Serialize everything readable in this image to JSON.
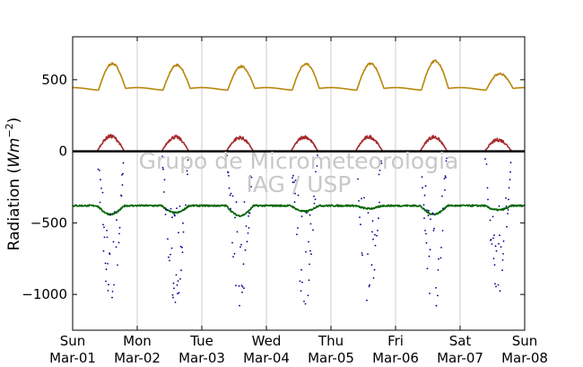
{
  "chart_data": {
    "type": "scatter",
    "ylabel_text": "Radiation (",
    "ylabel_math": "Wm",
    "ylabel_exp": "−2",
    "ylabel_close": ")",
    "ylim": [
      -1250,
      800
    ],
    "xlim": [
      0,
      7
    ],
    "grid": "vertical",
    "yticks": [
      500,
      0,
      -500,
      -1000
    ],
    "ytick_labels": [
      "500",
      "0",
      "−500",
      "−1000"
    ],
    "xtick_labels": [
      [
        "Sun",
        "Mar-01"
      ],
      [
        "Mon",
        "Mar-02"
      ],
      [
        "Tue",
        "Mar-03"
      ],
      [
        "Wed",
        "Mar-04"
      ],
      [
        "Thu",
        "Mar-05"
      ],
      [
        "Fri",
        "Mar-06"
      ],
      [
        "Sat",
        "Mar-07"
      ],
      [
        "Sun",
        "Mar-08"
      ]
    ],
    "watermark": [
      "Grupo de Micrometeorologia",
      "IAG / USP"
    ],
    "series": [
      {
        "color": "#b8860b",
        "style": "line",
        "daily_peaks": [
          620,
          610,
          600,
          620,
          620,
          640,
          550
        ],
        "night_value": 435
      },
      {
        "color": "#a52a2a",
        "style": "line",
        "daily_peaks": [
          105,
          100,
          95,
          100,
          100,
          100,
          80
        ],
        "night_value": 0
      },
      {
        "color": "#000000",
        "style": "line",
        "constant": 0
      },
      {
        "color": "#006400",
        "style": "line",
        "night_value": -380,
        "daily_dips": [
          -440,
          -430,
          -450,
          -420,
          -400,
          -440,
          -410
        ]
      },
      {
        "color": "#00008b",
        "style": "points",
        "daily_min": [
          -1120,
          -1100,
          -1080,
          -1110,
          -1100,
          -1140,
          -1000
        ],
        "night_value": 0
      }
    ]
  }
}
